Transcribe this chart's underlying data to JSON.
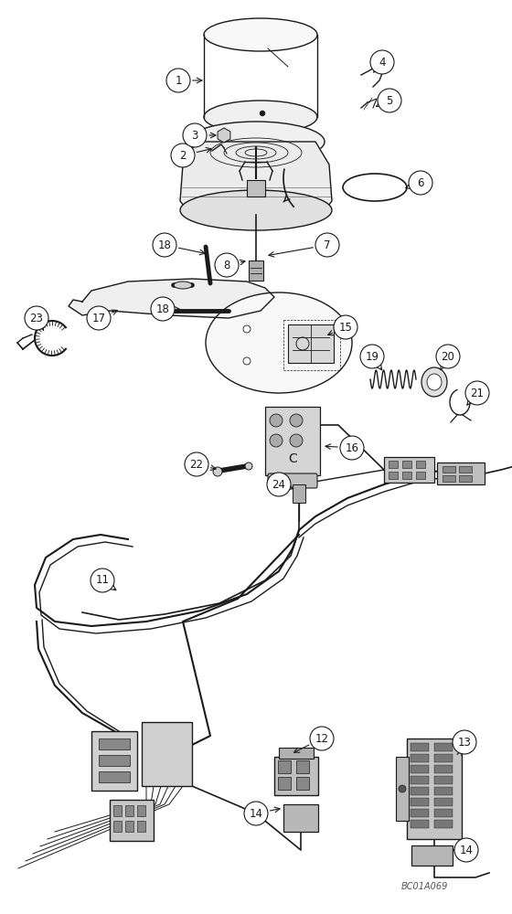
{
  "bg_color": "#ffffff",
  "line_color": "#1a1a1a",
  "watermark": "BC01A069"
}
